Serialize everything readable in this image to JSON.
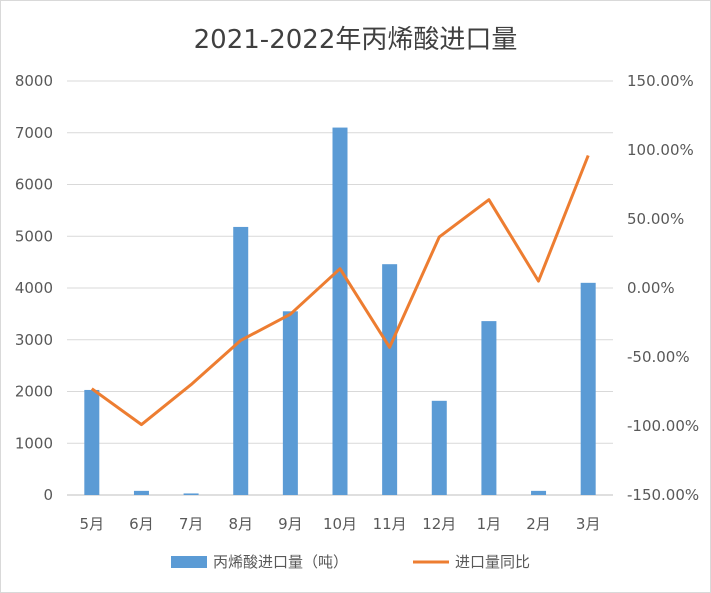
{
  "chart_data": {
    "type": "bar",
    "title": "2021-2022年丙烯酸进口量",
    "categories": [
      "5月",
      "6月",
      "7月",
      "8月",
      "9月",
      "10月",
      "11月",
      "12月",
      "1月",
      "2月",
      "3月"
    ],
    "series": [
      {
        "name": "丙烯酸进口量（吨）",
        "type": "bar",
        "axis": "left",
        "color": "#5b9bd5",
        "values": [
          2030,
          80,
          30,
          5180,
          3550,
          7100,
          4460,
          1820,
          3360,
          80,
          4100
        ]
      },
      {
        "name": "进口量同比",
        "type": "line",
        "axis": "right",
        "color": "#ed7d31",
        "values": [
          -0.73,
          -0.99,
          -0.7,
          -0.38,
          -0.19,
          0.14,
          -0.43,
          0.37,
          0.64,
          0.05,
          0.96
        ]
      }
    ],
    "y_left": {
      "ylim": [
        0,
        8000
      ],
      "ticks": [
        "0",
        "1000",
        "2000",
        "3000",
        "4000",
        "5000",
        "6000",
        "7000",
        "8000"
      ]
    },
    "y_right": {
      "ylim": [
        -1.5,
        1.5
      ],
      "ticks": [
        "-150.00%",
        "-100.00%",
        "-50.00%",
        "0.00%",
        "50.00%",
        "100.00%",
        "150.00%"
      ]
    },
    "grid": true,
    "legend": "bottom"
  }
}
